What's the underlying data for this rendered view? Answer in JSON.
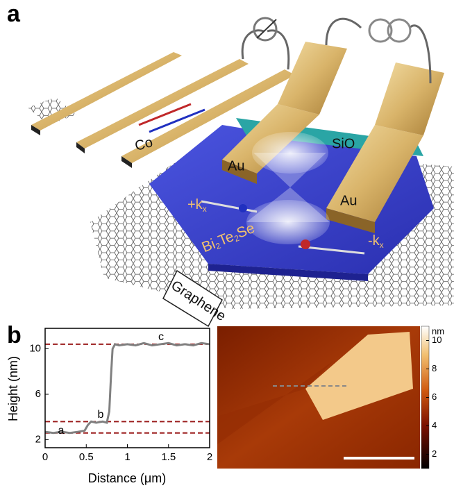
{
  "panel_a": {
    "label": "a",
    "co_label": "Co",
    "au_left": "Au",
    "au_right": "Au",
    "sio_label": "SiO",
    "plus_k": "+k",
    "plus_k_sub": "x",
    "minus_k": "-k",
    "minus_k_sub": "x",
    "material": [
      "Bi",
      "2",
      "Te",
      "2",
      "Se"
    ],
    "substrate_label": "Graphene"
  },
  "chart_data": {
    "type": "line",
    "panel_label": "b",
    "x_label": "Distance (μm)",
    "y_label": "Height (nm)",
    "x": [
      0,
      0.1,
      0.2,
      0.3,
      0.4,
      0.48,
      0.52,
      0.56,
      0.62,
      0.7,
      0.75,
      0.78,
      0.8,
      0.82,
      0.85,
      0.9,
      1.0,
      1.1,
      1.2,
      1.3,
      1.4,
      1.5,
      1.6,
      1.7,
      1.8,
      1.9,
      2.0
    ],
    "values": [
      2.7,
      2.6,
      2.7,
      2.6,
      2.7,
      2.8,
      3.3,
      3.6,
      3.5,
      3.6,
      3.5,
      4.5,
      7.5,
      10.0,
      10.4,
      10.3,
      10.4,
      10.3,
      10.5,
      10.3,
      10.4,
      10.5,
      10.3,
      10.4,
      10.3,
      10.5,
      10.4
    ],
    "color": "#808080",
    "xlim": [
      0,
      2
    ],
    "ylim": [
      1.3,
      11.8
    ],
    "xticks": [
      0,
      0.5,
      1,
      1.5,
      2
    ],
    "yticks": [
      2,
      6,
      10
    ],
    "reference_lines": [
      10.4,
      3.6,
      2.6
    ],
    "reference_color": "#9b1c1c",
    "annotations": [
      "a",
      "b",
      "c"
    ]
  },
  "afm_image": {
    "colorbar_unit": "nm",
    "colorbar_lim": [
      1,
      11
    ],
    "colorbar_ticks": [
      2,
      4,
      6,
      8,
      10
    ]
  }
}
